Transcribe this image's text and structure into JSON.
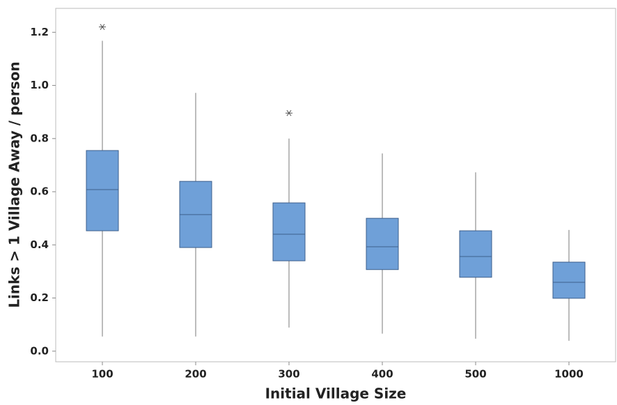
{
  "chart_data": {
    "type": "box",
    "x_label": "Initial Village Size",
    "y_label": "Links > 1 Village Away / person",
    "categories": [
      "100",
      "200",
      "300",
      "400",
      "500",
      "1000"
    ],
    "boxes": [
      {
        "min": 0.055,
        "q1": 0.453,
        "median": 0.608,
        "q3": 0.755,
        "max": 1.168,
        "outliers": [
          1.22
        ]
      },
      {
        "min": 0.055,
        "q1": 0.39,
        "median": 0.514,
        "q3": 0.639,
        "max": 0.972,
        "outliers": []
      },
      {
        "min": 0.089,
        "q1": 0.34,
        "median": 0.44,
        "q3": 0.558,
        "max": 0.8,
        "outliers": [
          0.896
        ]
      },
      {
        "min": 0.066,
        "q1": 0.307,
        "median": 0.393,
        "q3": 0.5,
        "max": 0.744,
        "outliers": []
      },
      {
        "min": 0.047,
        "q1": 0.278,
        "median": 0.356,
        "q3": 0.453,
        "max": 0.673,
        "outliers": []
      },
      {
        "min": 0.039,
        "q1": 0.199,
        "median": 0.259,
        "q3": 0.335,
        "max": 0.456,
        "outliers": []
      }
    ],
    "color": "#6fa0d8",
    "ylim": [
      -0.04,
      1.29
    ],
    "yticks": [
      {
        "value": 0,
        "label": "0.0"
      },
      0.2,
      0.4,
      0.6,
      0.8,
      {
        "value": 1,
        "label": "1.0"
      },
      1.2
    ]
  }
}
